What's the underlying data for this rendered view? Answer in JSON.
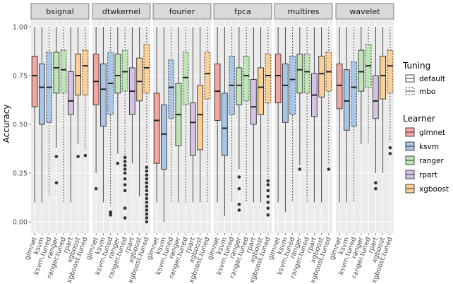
{
  "chart_data": {
    "type": "boxplot",
    "ylabel": "Accuracy",
    "xlabel": "",
    "ylim": [
      0,
      1
    ],
    "yticks": [
      0.0,
      0.25,
      0.5,
      0.75,
      1.0
    ],
    "ytick_labels": [
      "0.00",
      "0.25",
      "0.50",
      "0.75",
      "1.00"
    ],
    "categories": [
      "glmnet",
      "ksvm",
      "ksvm.tuned",
      "ranger",
      "ranger.tuned",
      "rpart",
      "xgboost",
      "xgboost.tuned"
    ],
    "legend_tuning": {
      "title": "Tuning",
      "items": [
        {
          "label": "default",
          "dash": "solid"
        },
        {
          "label": "mbo",
          "dash": "dotted"
        }
      ]
    },
    "legend_learner": {
      "title": "Learner",
      "items": [
        {
          "label": "glmnet",
          "color": "#f4a6a2"
        },
        {
          "label": "ksvm",
          "color": "#a9c6e6"
        },
        {
          "label": "ranger",
          "color": "#bde5b6"
        },
        {
          "label": "rpart",
          "color": "#d6c2e2"
        },
        {
          "label": "xgboost",
          "color": "#fccf95"
        }
      ]
    },
    "box_learner": [
      "glmnet",
      "ksvm",
      "ksvm",
      "ranger",
      "ranger",
      "rpart",
      "xgboost",
      "xgboost"
    ],
    "box_tuning": [
      "default",
      "default",
      "mbo",
      "default",
      "mbo",
      "default",
      "default",
      "mbo"
    ],
    "panels": [
      {
        "title": "bsignal",
        "boxes": [
          {
            "min": 0.1,
            "q1": 0.59,
            "median": 0.75,
            "q3": 0.85,
            "max": 1.0,
            "outliers": []
          },
          {
            "min": 0.1,
            "q1": 0.5,
            "median": 0.69,
            "q3": 0.81,
            "max": 1.0,
            "outliers": []
          },
          {
            "min": 0.13,
            "q1": 0.51,
            "median": 0.69,
            "q3": 0.87,
            "max": 1.0,
            "outliers": []
          },
          {
            "min": 0.38,
            "q1": 0.66,
            "median": 0.79,
            "q3": 0.87,
            "max": 1.0,
            "outliers": [
              0.2,
              0.335
            ]
          },
          {
            "min": 0.1,
            "q1": 0.66,
            "median": 0.78,
            "q3": 0.88,
            "max": 1.0,
            "outliers": []
          },
          {
            "min": 0.1,
            "q1": 0.55,
            "median": 0.62,
            "q3": 0.77,
            "max": 1.0,
            "outliers": []
          },
          {
            "min": 0.4,
            "q1": 0.65,
            "median": 0.75,
            "q3": 0.86,
            "max": 1.0,
            "outliers": [
              0.335
            ]
          },
          {
            "min": 0.37,
            "q1": 0.65,
            "median": 0.8,
            "q3": 0.88,
            "max": 1.0,
            "outliers": [
              0.34
            ]
          }
        ]
      },
      {
        "title": "dtwkernel",
        "boxes": [
          {
            "min": 0.25,
            "q1": 0.6,
            "median": 0.72,
            "q3": 0.86,
            "max": 1.0,
            "outliers": [
              0.17
            ]
          },
          {
            "min": 0.1,
            "q1": 0.49,
            "median": 0.68,
            "q3": 0.81,
            "max": 1.0,
            "outliers": []
          },
          {
            "min": 0.08,
            "q1": 0.55,
            "median": 0.71,
            "q3": 0.87,
            "max": 1.0,
            "outliers": [
              0.035,
              0.045,
              0.05
            ]
          },
          {
            "min": 0.35,
            "q1": 0.66,
            "median": 0.75,
            "q3": 0.86,
            "max": 1.0,
            "outliers": [
              0.3
            ]
          },
          {
            "min": 0.34,
            "q1": 0.67,
            "median": 0.77,
            "q3": 0.88,
            "max": 1.0,
            "outliers": [
              0.02,
              0.07,
              0.16,
              0.19,
              0.22,
              0.25,
              0.27,
              0.29,
              0.31,
              0.33
            ]
          },
          {
            "min": 0.3,
            "q1": 0.55,
            "median": 0.67,
            "q3": 0.79,
            "max": 1.0,
            "outliers": []
          },
          {
            "min": 0.13,
            "q1": 0.62,
            "median": 0.72,
            "q3": 0.84,
            "max": 1.0,
            "outliers": []
          },
          {
            "min": 0.3,
            "q1": 0.66,
            "median": 0.79,
            "q3": 0.91,
            "max": 1.0,
            "outliers": [
              0.0,
              0.02,
              0.04,
              0.06,
              0.08,
              0.1,
              0.12,
              0.14,
              0.16,
              0.18,
              0.2,
              0.22,
              0.24,
              0.26,
              0.28
            ]
          }
        ]
      },
      {
        "title": "fourier",
        "boxes": [
          {
            "min": 0.1,
            "q1": 0.3,
            "median": 0.52,
            "q3": 0.66,
            "max": 1.0,
            "outliers": []
          },
          {
            "min": 0.0,
            "q1": 0.27,
            "median": 0.45,
            "q3": 0.6,
            "max": 1.0,
            "outliers": []
          },
          {
            "min": 0.1,
            "q1": 0.53,
            "median": 0.69,
            "q3": 0.83,
            "max": 1.0,
            "outliers": []
          },
          {
            "min": 0.1,
            "q1": 0.39,
            "median": 0.55,
            "q3": 0.71,
            "max": 1.0,
            "outliers": []
          },
          {
            "min": 0.1,
            "q1": 0.6,
            "median": 0.74,
            "q3": 0.87,
            "max": 1.0,
            "outliers": []
          },
          {
            "min": 0.1,
            "q1": 0.34,
            "median": 0.51,
            "q3": 0.61,
            "max": 1.0,
            "outliers": []
          },
          {
            "min": 0.1,
            "q1": 0.37,
            "median": 0.55,
            "q3": 0.7,
            "max": 1.0,
            "outliers": []
          },
          {
            "min": 0.1,
            "q1": 0.63,
            "median": 0.76,
            "q3": 0.87,
            "max": 1.0,
            "outliers": []
          }
        ]
      },
      {
        "title": "fpca",
        "boxes": [
          {
            "min": 0.1,
            "q1": 0.52,
            "median": 0.67,
            "q3": 0.81,
            "max": 1.0,
            "outliers": []
          },
          {
            "min": 0.03,
            "q1": 0.34,
            "median": 0.48,
            "q3": 0.66,
            "max": 1.0,
            "outliers": []
          },
          {
            "min": 0.1,
            "q1": 0.55,
            "median": 0.7,
            "q3": 0.85,
            "max": 1.0,
            "outliers": []
          },
          {
            "min": 0.27,
            "q1": 0.6,
            "median": 0.7,
            "q3": 0.79,
            "max": 1.0,
            "outliers": [
              0.06,
              0.09,
              0.17,
              0.23
            ]
          },
          {
            "min": 0.1,
            "q1": 0.62,
            "median": 0.75,
            "q3": 0.85,
            "max": 1.0,
            "outliers": []
          },
          {
            "min": 0.1,
            "q1": 0.5,
            "median": 0.59,
            "q3": 0.73,
            "max": 1.0,
            "outliers": []
          },
          {
            "min": 0.1,
            "q1": 0.55,
            "median": 0.69,
            "q3": 0.79,
            "max": 1.0,
            "outliers": []
          },
          {
            "min": 0.22,
            "q1": 0.61,
            "median": 0.75,
            "q3": 0.86,
            "max": 1.0,
            "outliers": [
              0.035,
              0.07,
              0.1,
              0.13,
              0.16,
              0.19,
              0.21
            ]
          }
        ]
      },
      {
        "title": "multires",
        "boxes": [
          {
            "min": 0.1,
            "q1": 0.61,
            "median": 0.75,
            "q3": 0.86,
            "max": 1.0,
            "outliers": []
          },
          {
            "min": 0.05,
            "q1": 0.51,
            "median": 0.7,
            "q3": 0.81,
            "max": 1.0,
            "outliers": []
          },
          {
            "min": 0.1,
            "q1": 0.55,
            "median": 0.73,
            "q3": 0.85,
            "max": 1.0,
            "outliers": []
          },
          {
            "min": 0.29,
            "q1": 0.66,
            "median": 0.78,
            "q3": 0.86,
            "max": 1.0,
            "outliers": [
              0.27
            ]
          },
          {
            "min": 0.1,
            "q1": 0.66,
            "median": 0.77,
            "q3": 0.86,
            "max": 1.0,
            "outliers": []
          },
          {
            "min": 0.1,
            "q1": 0.54,
            "median": 0.65,
            "q3": 0.76,
            "max": 1.0,
            "outliers": []
          },
          {
            "min": 0.1,
            "q1": 0.64,
            "median": 0.76,
            "q3": 0.85,
            "max": 1.0,
            "outliers": []
          },
          {
            "min": 0.29,
            "q1": 0.67,
            "median": 0.77,
            "q3": 0.87,
            "max": 1.0,
            "outliers": [
              0.27
            ]
          }
        ]
      },
      {
        "title": "wavelet",
        "boxes": [
          {
            "min": 0.1,
            "q1": 0.58,
            "median": 0.7,
            "q3": 0.81,
            "max": 1.0,
            "outliers": []
          },
          {
            "min": 0.1,
            "q1": 0.47,
            "median": 0.62,
            "q3": 0.78,
            "max": 1.0,
            "outliers": []
          },
          {
            "min": 0.1,
            "q1": 0.49,
            "median": 0.69,
            "q3": 0.82,
            "max": 1.0,
            "outliers": []
          },
          {
            "min": 0.4,
            "q1": 0.67,
            "median": 0.77,
            "q3": 0.88,
            "max": 1.0,
            "outliers": []
          },
          {
            "min": 0.4,
            "q1": 0.69,
            "median": 0.8,
            "q3": 0.91,
            "max": 1.0,
            "outliers": []
          },
          {
            "min": 0.25,
            "q1": 0.53,
            "median": 0.62,
            "q3": 0.75,
            "max": 1.0,
            "outliers": [
              0.17,
              0.2
            ]
          },
          {
            "min": 0.25,
            "q1": 0.63,
            "median": 0.75,
            "q3": 0.85,
            "max": 1.0,
            "outliers": []
          },
          {
            "min": 0.41,
            "q1": 0.66,
            "median": 0.8,
            "q3": 0.88,
            "max": 1.0,
            "outliers": [
              0.35,
              0.38
            ]
          }
        ]
      }
    ]
  }
}
